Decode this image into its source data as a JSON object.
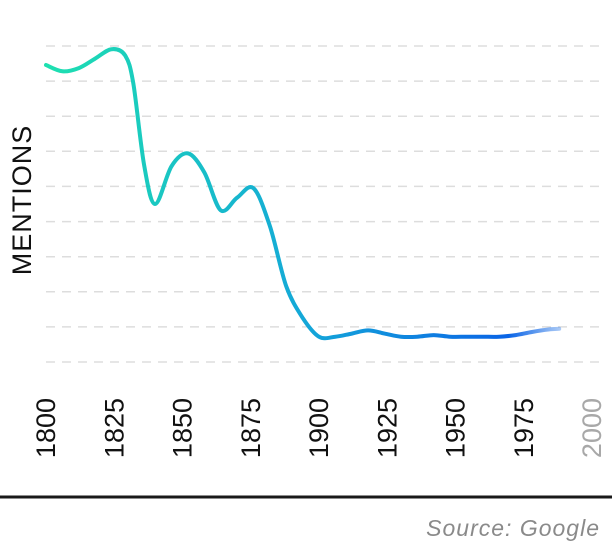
{
  "chart_data": {
    "type": "line",
    "title": "",
    "ylabel": "MENTIONS",
    "xlabel": "",
    "x": [
      1800,
      1806,
      1812,
      1818,
      1824,
      1829,
      1832,
      1836,
      1840,
      1846,
      1852,
      1858,
      1864,
      1870,
      1876,
      1882,
      1888,
      1894,
      1900,
      1906,
      1912,
      1918,
      1924,
      1930,
      1936,
      1942,
      1948,
      1954,
      1960,
      1966,
      1972,
      1978,
      1984,
      1988
    ],
    "series": [
      {
        "values": [
          94,
          92,
          93,
          96,
          99,
          97,
          88,
          62,
          50,
          62,
          66,
          60,
          48,
          52,
          55,
          43,
          24,
          14,
          8,
          8,
          9,
          10,
          9,
          8,
          8,
          8.5,
          8,
          8,
          8,
          8,
          8.5,
          9.5,
          10.3,
          10.5
        ]
      }
    ],
    "xticks": [
      1800,
      1825,
      1850,
      1875,
      1900,
      1925,
      1950,
      1975,
      2000
    ],
    "xtick_labels": [
      "1800",
      "1825",
      "1850",
      "1875",
      "1900",
      "1925",
      "1950",
      "1975",
      "2000"
    ],
    "xlim": [
      1800,
      2000
    ],
    "ylim": [
      0,
      100
    ],
    "grid": true,
    "gradient_colors": [
      "#1ee0b0",
      "#14a8d8",
      "#0a64e6"
    ],
    "tick_color": "#111111",
    "muted_tick_color": "#a8a8a8"
  },
  "footer": {
    "source": "Source: Google"
  }
}
